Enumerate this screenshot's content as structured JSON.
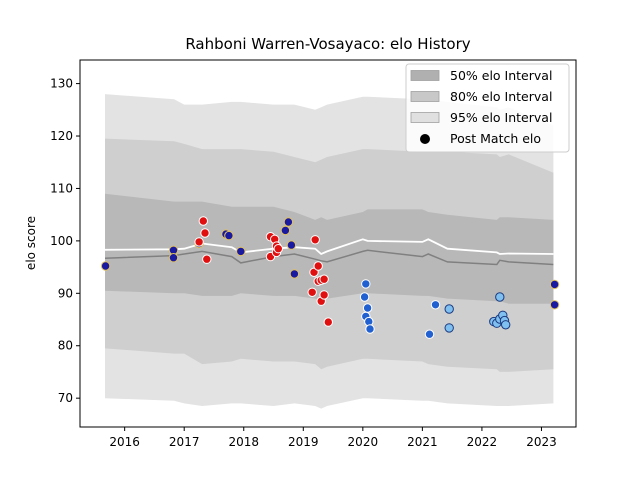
{
  "chart_data": {
    "type": "scatter",
    "title": "Rahboni Warren-Vosayaco: elo History",
    "xlabel": "",
    "ylabel": "elo score",
    "xlim": [
      2015.25,
      2023.58
    ],
    "ylim": [
      64.5,
      134.5
    ],
    "x_ticks": [
      2016,
      2017,
      2018,
      2019,
      2020,
      2021,
      2022,
      2023
    ],
    "y_ticks": [
      70,
      80,
      90,
      100,
      110,
      120,
      130
    ],
    "grid": false,
    "legend_position": "top-right",
    "legend": [
      {
        "label": "50% elo Interval",
        "kind": "band",
        "color": "#b0b0b0"
      },
      {
        "label": "80% elo Interval",
        "kind": "band",
        "color": "#c8c8c8"
      },
      {
        "label": "95% elo Interval",
        "kind": "band",
        "color": "#e0e0e0"
      },
      {
        "label": "Post Match elo",
        "kind": "marker",
        "color": "#000000"
      }
    ],
    "bands": {
      "x": [
        2015.67,
        2016.83,
        2017.0,
        2017.3,
        2017.8,
        2017.95,
        2018.5,
        2018.85,
        2019.2,
        2019.3,
        2019.4,
        2020.0,
        2020.08,
        2021.0,
        2021.1,
        2021.42,
        2022.25,
        2022.3,
        2022.45,
        2023.2
      ],
      "center": [
        96.7,
        97.2,
        97.5,
        98.0,
        97.0,
        95.8,
        97.0,
        97.5,
        96.5,
        96.2,
        96.0,
        98.0,
        98.2,
        97.0,
        97.5,
        96.0,
        95.5,
        96.3,
        96.0,
        95.5
      ],
      "p50_low": [
        90.5,
        90.0,
        90.0,
        89.5,
        89.5,
        90.0,
        89.5,
        89.5,
        89.0,
        88.5,
        89.0,
        90.0,
        90.0,
        89.5,
        89.5,
        89.0,
        88.5,
        88.5,
        88.0,
        88.0
      ],
      "p50_high": [
        109.0,
        107.5,
        107.5,
        107.5,
        106.5,
        106.5,
        106.5,
        105.5,
        104.0,
        104.5,
        104.0,
        105.5,
        106.0,
        106.0,
        105.5,
        105.0,
        104.0,
        104.5,
        104.5,
        104.0
      ],
      "p80_low": [
        79.5,
        78.5,
        78.5,
        76.5,
        77.0,
        77.5,
        77.0,
        77.0,
        76.5,
        75.5,
        76.0,
        77.5,
        77.5,
        77.0,
        76.5,
        76.0,
        75.5,
        75.0,
        75.0,
        75.5
      ],
      "p80_high": [
        119.5,
        119.0,
        118.5,
        117.5,
        117.5,
        117.5,
        117.0,
        116.0,
        115.0,
        115.5,
        116.0,
        117.5,
        117.5,
        117.0,
        117.0,
        117.0,
        116.5,
        116.0,
        116.5,
        113.0
      ],
      "p95_low": [
        70.0,
        69.5,
        69.0,
        68.5,
        69.0,
        69.0,
        68.5,
        69.0,
        68.5,
        68.0,
        68.5,
        70.0,
        70.0,
        69.5,
        69.5,
        69.0,
        68.5,
        68.5,
        68.5,
        69.0
      ],
      "p95_high": [
        128.0,
        127.0,
        126.0,
        126.0,
        126.5,
        126.5,
        126.0,
        126.0,
        125.0,
        125.5,
        126.0,
        127.5,
        127.5,
        127.0,
        127.0,
        126.5,
        125.5,
        125.0,
        125.5,
        122.0
      ]
    },
    "white_line": {
      "x": [
        2015.67,
        2016.83,
        2017.0,
        2017.3,
        2017.8,
        2017.95,
        2018.5,
        2018.85,
        2019.2,
        2019.3,
        2019.4,
        2020.0,
        2020.08,
        2021.0,
        2021.1,
        2021.42,
        2022.25,
        2022.3,
        2022.45,
        2023.2
      ],
      "y": [
        98.3,
        98.4,
        98.5,
        99.5,
        98.8,
        97.8,
        98.5,
        98.8,
        98.5,
        97.5,
        98.0,
        100.3,
        100.0,
        99.8,
        100.3,
        98.5,
        97.8,
        97.5,
        97.6,
        97.5
      ]
    },
    "series": [
      {
        "name": "",
        "fill": "#1a1aa0",
        "stroke": "#e0c060",
        "points": [
          [
            2015.68,
            95.2
          ],
          [
            2016.82,
            98.2
          ],
          [
            2016.82,
            96.8
          ],
          [
            2017.25,
            99.5
          ],
          [
            2017.7,
            101.3
          ],
          [
            2017.75,
            101.0
          ],
          [
            2017.95,
            98.0
          ],
          [
            2018.7,
            102.0
          ],
          [
            2018.75,
            103.6
          ],
          [
            2018.8,
            99.2
          ],
          [
            2018.85,
            93.7
          ],
          [
            2023.22,
            91.7
          ],
          [
            2023.22,
            87.8
          ]
        ]
      },
      {
        "name": "",
        "fill": "#e01010",
        "stroke": "#ffffff",
        "points": [
          [
            2017.25,
            99.8
          ],
          [
            2017.32,
            103.8
          ],
          [
            2017.35,
            101.5
          ],
          [
            2017.38,
            96.5
          ],
          [
            2018.45,
            100.8
          ],
          [
            2018.45,
            97.0
          ],
          [
            2018.52,
            100.3
          ],
          [
            2018.55,
            99.0
          ],
          [
            2018.55,
            97.8
          ],
          [
            2018.58,
            98.5
          ],
          [
            2019.15,
            90.2
          ],
          [
            2019.18,
            94.0
          ],
          [
            2019.2,
            100.2
          ],
          [
            2019.25,
            92.3
          ],
          [
            2019.25,
            95.2
          ],
          [
            2019.3,
            92.5
          ],
          [
            2019.3,
            88.5
          ],
          [
            2019.35,
            89.7
          ],
          [
            2019.35,
            92.7
          ],
          [
            2019.42,
            84.5
          ]
        ]
      },
      {
        "name": "",
        "fill": "#2060d0",
        "stroke": "#ffffff",
        "points": [
          [
            2020.05,
            91.8
          ],
          [
            2020.03,
            89.3
          ],
          [
            2020.08,
            87.2
          ],
          [
            2020.05,
            85.6
          ],
          [
            2020.1,
            84.6
          ],
          [
            2020.12,
            83.2
          ],
          [
            2021.12,
            82.2
          ],
          [
            2021.22,
            87.8
          ]
        ]
      },
      {
        "name": "",
        "fill": "#80c0f0",
        "stroke": "#1a3a80",
        "points": [
          [
            2021.45,
            87.0
          ],
          [
            2021.45,
            83.4
          ],
          [
            2022.2,
            84.6
          ],
          [
            2022.25,
            84.3
          ],
          [
            2022.3,
            89.3
          ],
          [
            2022.3,
            85.1
          ],
          [
            2022.35,
            85.8
          ],
          [
            2022.38,
            84.8
          ],
          [
            2022.4,
            84.0
          ]
        ]
      }
    ]
  }
}
